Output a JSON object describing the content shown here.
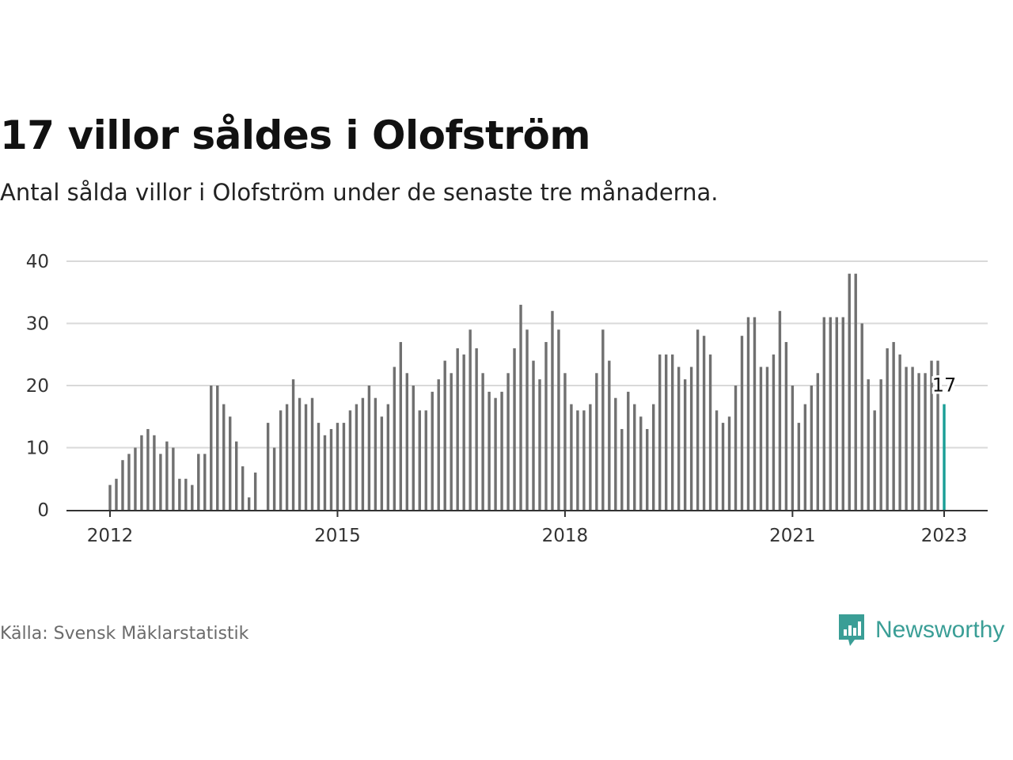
{
  "title": "17 villor såldes i Olofström",
  "subtitle": "Antal sålda villor i Olofström under de senaste tre månaderna.",
  "source": "Källa: Svensk Mäklarstatistik",
  "brand": {
    "name": "Newsworthy",
    "icon": "newsworthy-logo-icon",
    "color": "#3a9e96"
  },
  "colors": {
    "bar": "#707070",
    "highlight": "#1a9e96",
    "grid": "#d9d9d9",
    "axis": "#333333"
  },
  "chart_data": {
    "type": "bar",
    "title": "17 villor såldes i Olofström",
    "subtitle": "Antal sålda villor i Olofström under de senaste tre månaderna.",
    "xlabel": "",
    "ylabel": "",
    "ylim": [
      0,
      40
    ],
    "yticks": [
      0,
      10,
      20,
      30,
      40
    ],
    "xtick_labels": [
      "2012",
      "2015",
      "2018",
      "2021",
      "2023"
    ],
    "grid": true,
    "x_start": "2012-01",
    "x_end": "2023-01",
    "highlight_label": "17",
    "values": [
      4,
      5,
      8,
      9,
      10,
      12,
      13,
      12,
      9,
      11,
      10,
      5,
      5,
      4,
      9,
      9,
      20,
      20,
      17,
      15,
      11,
      7,
      2,
      6,
      null,
      14,
      10,
      16,
      17,
      21,
      18,
      17,
      18,
      14,
      12,
      13,
      14,
      14,
      16,
      17,
      18,
      20,
      18,
      15,
      17,
      23,
      27,
      22,
      20,
      16,
      16,
      19,
      21,
      24,
      22,
      26,
      25,
      29,
      26,
      22,
      19,
      18,
      19,
      22,
      26,
      33,
      29,
      24,
      21,
      27,
      32,
      29,
      22,
      17,
      16,
      16,
      17,
      22,
      29,
      24,
      18,
      13,
      19,
      17,
      15,
      13,
      17,
      25,
      25,
      25,
      23,
      21,
      23,
      29,
      28,
      25,
      16,
      14,
      15,
      20,
      28,
      31,
      31,
      23,
      23,
      25,
      32,
      27,
      20,
      14,
      17,
      20,
      22,
      31,
      31,
      31,
      31,
      38,
      38,
      30,
      21,
      16,
      21,
      26,
      27,
      25,
      23,
      23,
      22,
      22,
      24,
      24,
      17
    ]
  }
}
